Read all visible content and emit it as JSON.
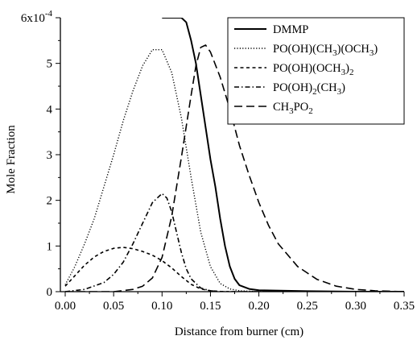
{
  "chart_data": {
    "type": "line",
    "xlabel": "Distance from burner (cm)",
    "ylabel": "Mole Fraction",
    "xlim": [
      -0.005,
      0.35
    ],
    "ylim": [
      0,
      6
    ],
    "y_multiplier_label": "6x10",
    "y_multiplier_exponent": "-4",
    "x_ticks": [
      "0.00",
      "0.05",
      "0.10",
      "0.15",
      "0.20",
      "0.25",
      "0.30",
      "0.35"
    ],
    "y_ticks": [
      "0",
      "1",
      "2",
      "3",
      "4",
      "5"
    ],
    "grid": false,
    "legend_position": "top-right",
    "series": [
      {
        "name": "DMMP",
        "legend_label": {
          "parts": [
            {
              "t": "DMMP",
              "sub": false
            }
          ]
        },
        "style": "solid",
        "x": [
          0.1,
          0.105,
          0.11,
          0.115,
          0.12,
          0.125,
          0.13,
          0.135,
          0.14,
          0.145,
          0.15,
          0.155,
          0.16,
          0.165,
          0.17,
          0.175,
          0.18,
          0.19,
          0.2,
          0.25,
          0.3,
          0.35
        ],
        "y": [
          6.0,
          6.0,
          6.0,
          6.0,
          6.0,
          5.9,
          5.5,
          5.0,
          4.3,
          3.6,
          2.9,
          2.3,
          1.6,
          1.0,
          0.55,
          0.28,
          0.14,
          0.06,
          0.03,
          0.01,
          0.0,
          0.0
        ]
      },
      {
        "name": "PO(OH)(CH3)(OCH3)",
        "legend_label": {
          "parts": [
            {
              "t": "PO(OH)(CH",
              "sub": false
            },
            {
              "t": "3",
              "sub": true
            },
            {
              "t": ")(OCH",
              "sub": false
            },
            {
              "t": "3",
              "sub": true
            },
            {
              "t": ")",
              "sub": false
            }
          ]
        },
        "style": "dotted",
        "x": [
          0.0,
          0.01,
          0.02,
          0.03,
          0.04,
          0.05,
          0.06,
          0.07,
          0.08,
          0.09,
          0.1,
          0.11,
          0.12,
          0.13,
          0.14,
          0.15,
          0.16,
          0.17,
          0.18,
          0.2,
          0.25,
          0.35
        ],
        "y": [
          0.15,
          0.55,
          1.05,
          1.6,
          2.3,
          3.0,
          3.75,
          4.4,
          4.95,
          5.3,
          5.3,
          4.8,
          3.8,
          2.5,
          1.3,
          0.55,
          0.18,
          0.06,
          0.02,
          0.0,
          0.0,
          0.0
        ]
      },
      {
        "name": "PO(OH)(OCH3)2",
        "legend_label": {
          "parts": [
            {
              "t": "PO(OH)(OCH",
              "sub": false
            },
            {
              "t": "3",
              "sub": true
            },
            {
              "t": ")",
              "sub": false
            },
            {
              "t": "2",
              "sub": true
            }
          ]
        },
        "style": "dashed-short",
        "x": [
          0.0,
          0.01,
          0.02,
          0.03,
          0.04,
          0.05,
          0.06,
          0.07,
          0.08,
          0.09,
          0.1,
          0.11,
          0.12,
          0.13,
          0.14,
          0.15,
          0.16,
          0.17,
          0.2,
          0.35
        ],
        "y": [
          0.12,
          0.35,
          0.58,
          0.76,
          0.88,
          0.95,
          0.97,
          0.94,
          0.88,
          0.8,
          0.68,
          0.52,
          0.33,
          0.16,
          0.06,
          0.02,
          0.005,
          0.0,
          0.0,
          0.0
        ]
      },
      {
        "name": "PO(OH)2(CH3)",
        "legend_label": {
          "parts": [
            {
              "t": "PO(OH)",
              "sub": false
            },
            {
              "t": "2",
              "sub": true
            },
            {
              "t": "(CH",
              "sub": false
            },
            {
              "t": "3",
              "sub": true
            },
            {
              "t": ")",
              "sub": false
            }
          ]
        },
        "style": "dash-dot",
        "x": [
          0.0,
          0.02,
          0.04,
          0.05,
          0.06,
          0.07,
          0.08,
          0.09,
          0.1,
          0.105,
          0.11,
          0.115,
          0.12,
          0.125,
          0.13,
          0.14,
          0.15,
          0.16,
          0.2,
          0.35
        ],
        "y": [
          0.0,
          0.05,
          0.2,
          0.38,
          0.65,
          1.05,
          1.5,
          1.95,
          2.15,
          2.05,
          1.75,
          1.3,
          0.85,
          0.5,
          0.28,
          0.08,
          0.02,
          0.0,
          0.0,
          0.0
        ]
      },
      {
        "name": "CH3PO2",
        "legend_label": {
          "parts": [
            {
              "t": "CH",
              "sub": false
            },
            {
              "t": "3",
              "sub": true
            },
            {
              "t": "PO",
              "sub": false
            },
            {
              "t": "2",
              "sub": true
            }
          ]
        },
        "style": "dashed-long",
        "x": [
          0.0,
          0.05,
          0.07,
          0.08,
          0.09,
          0.1,
          0.11,
          0.12,
          0.13,
          0.135,
          0.14,
          0.145,
          0.15,
          0.16,
          0.17,
          0.18,
          0.19,
          0.2,
          0.21,
          0.22,
          0.24,
          0.26,
          0.28,
          0.3,
          0.32,
          0.35
        ],
        "y": [
          0.0,
          0.0,
          0.05,
          0.12,
          0.3,
          0.75,
          1.65,
          2.95,
          4.3,
          4.95,
          5.35,
          5.4,
          5.25,
          4.7,
          4.0,
          3.2,
          2.55,
          1.95,
          1.45,
          1.05,
          0.55,
          0.27,
          0.12,
          0.05,
          0.02,
          0.0
        ]
      }
    ]
  }
}
